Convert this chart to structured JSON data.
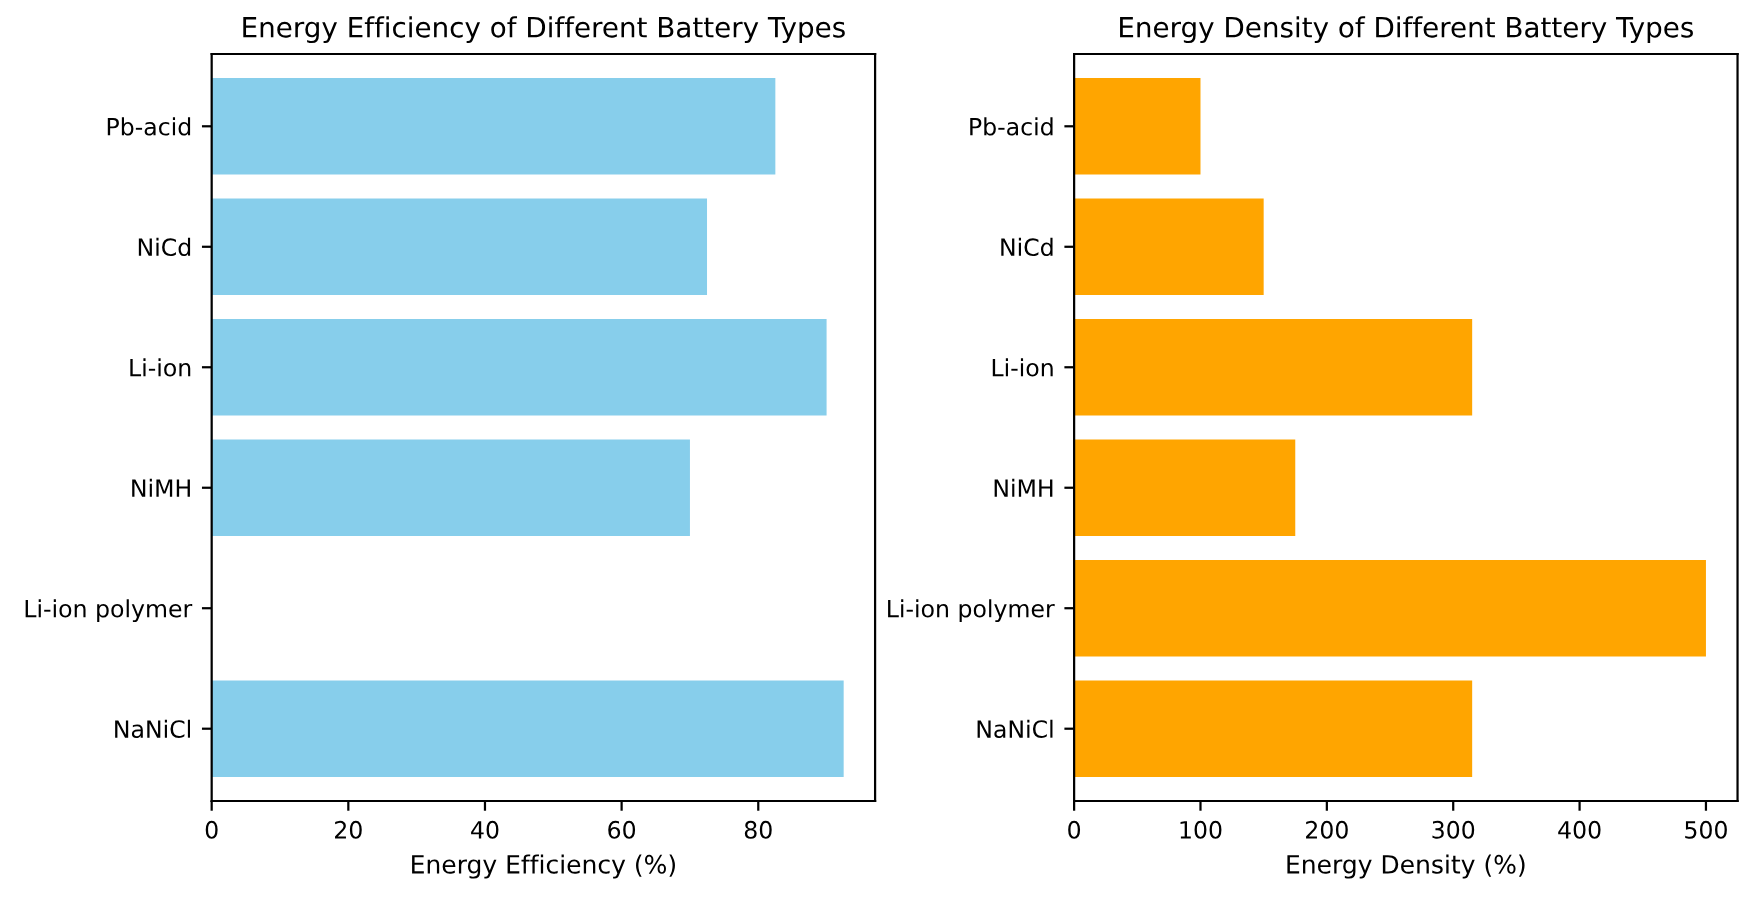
{
  "chart_data": [
    {
      "type": "bar",
      "orientation": "horizontal",
      "title": "Energy Efficiency of Different Battery Types",
      "xlabel": "Energy Efficiency (%)",
      "categories": [
        "Pb-acid",
        "NiCd",
        "Li-ion",
        "NiMH",
        "Li-ion polymer",
        "NaNiCl"
      ],
      "values": [
        82.5,
        72.5,
        90,
        70,
        null,
        92.5
      ],
      "color": "#87ceeb",
      "xlim": [
        0,
        97.1
      ],
      "xticks": [
        0,
        20,
        40,
        60,
        80
      ],
      "grid": false
    },
    {
      "type": "bar",
      "orientation": "horizontal",
      "title": "Energy Density of Different Battery Types",
      "xlabel": "Energy Density (%)",
      "categories": [
        "Pb-acid",
        "NiCd",
        "Li-ion",
        "NiMH",
        "Li-ion polymer",
        "NaNiCl"
      ],
      "values": [
        100,
        150,
        315,
        175,
        500,
        315
      ],
      "color": "#ffa500",
      "xlim": [
        0,
        525
      ],
      "xticks": [
        0,
        100,
        200,
        300,
        400,
        500
      ],
      "grid": false
    }
  ]
}
